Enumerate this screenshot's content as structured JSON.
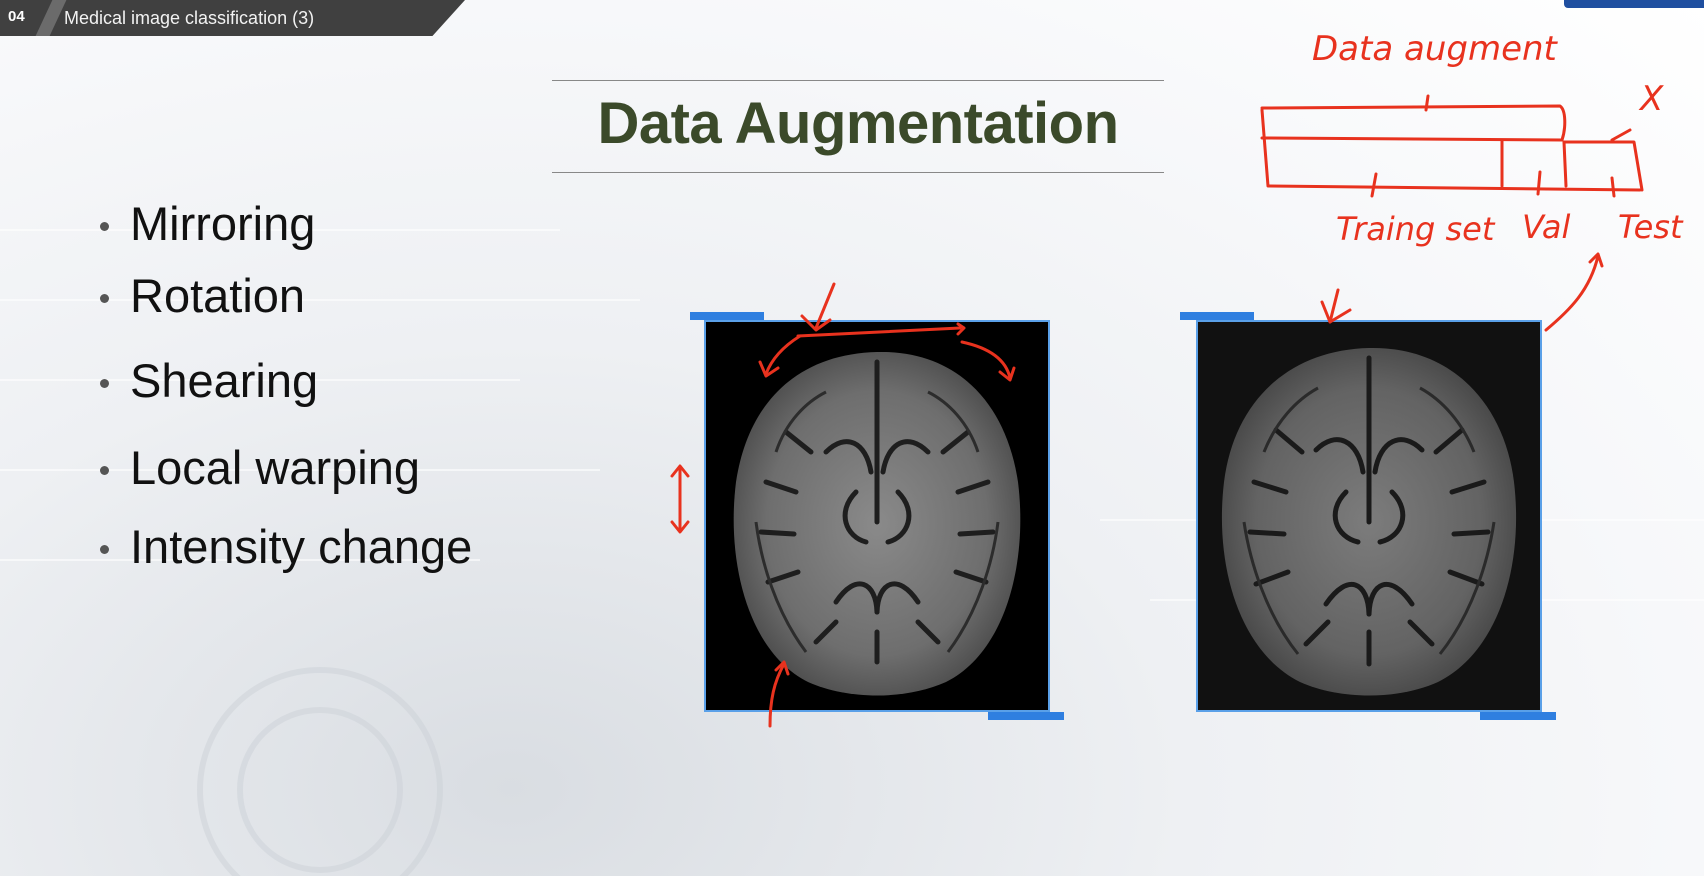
{
  "header": {
    "section_number": "04",
    "section_title": "Medical image classification (3)"
  },
  "slide": {
    "title": "Data Augmentation",
    "bullets": [
      "Mirroring",
      "Rotation",
      "Shearing",
      "Local warping",
      "Intensity change"
    ]
  },
  "annotations": {
    "color": "#e8321e",
    "data_augment_label": "Data augment",
    "training_label": "Traing set",
    "val_label": "Val",
    "test_label": "Test",
    "x_mark": "X"
  },
  "colors": {
    "title": "#3b4a2a",
    "frame_border": "#5aa0e8",
    "frame_accent": "#2f7fe0"
  }
}
